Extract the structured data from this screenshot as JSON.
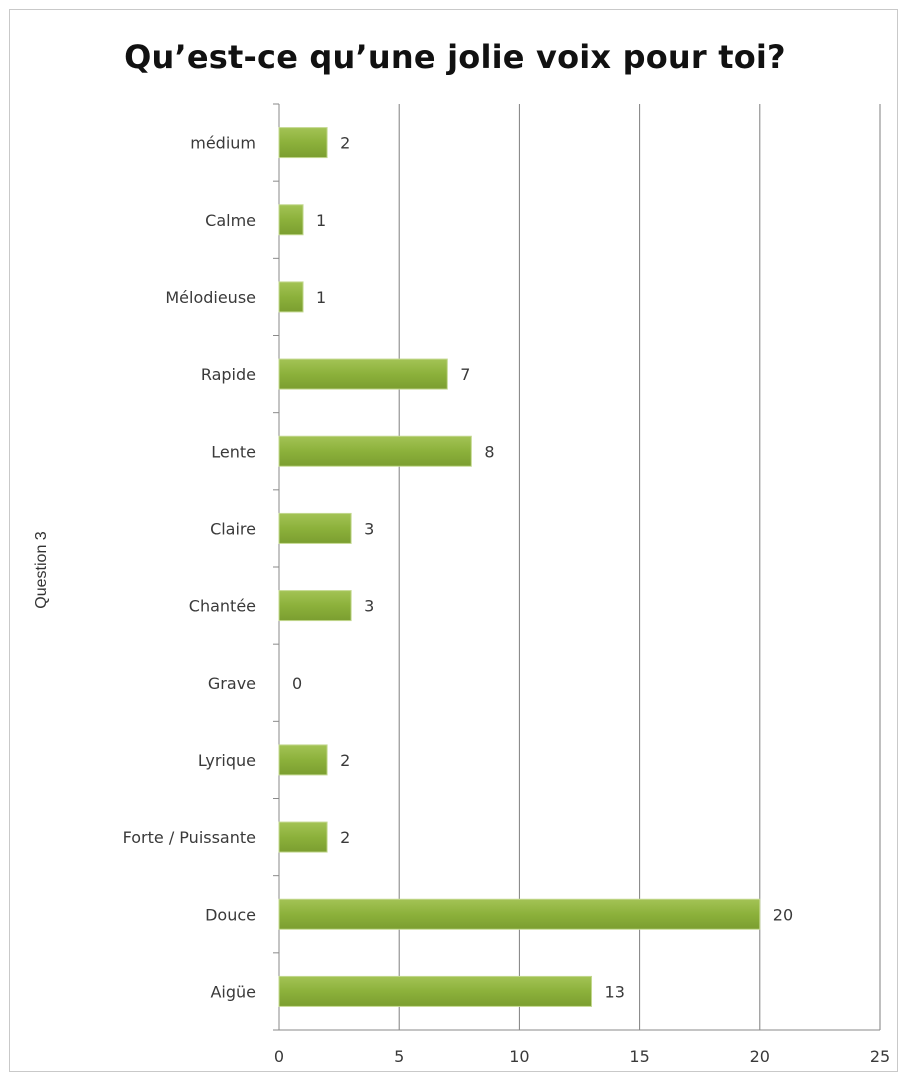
{
  "chart_data": {
    "type": "bar",
    "orientation": "horizontal",
    "title": "Qu’est-ce qu’une jolie voix pour toi?",
    "xlabel": "",
    "ylabel": "Question 3",
    "categories": [
      "médium",
      "Calme",
      "Mélodieuse",
      "Rapide",
      "Lente",
      "Claire",
      "Chantée",
      "Grave",
      "Lyrique",
      "Forte / Puissante",
      "Douce",
      "Aigüe"
    ],
    "values": [
      2,
      1,
      1,
      7,
      8,
      3,
      3,
      0,
      2,
      2,
      20,
      13
    ],
    "data_labels": [
      "2",
      "1",
      "1",
      "7",
      "8",
      "3",
      "3",
      "0",
      "2",
      "2",
      "20",
      "13"
    ],
    "xlim": [
      0,
      25
    ],
    "x_ticks": [
      "0",
      "5",
      "10",
      "15",
      "20",
      "25"
    ],
    "grid": "vertical",
    "legend": "none",
    "bar_color": "#8cb13b"
  }
}
